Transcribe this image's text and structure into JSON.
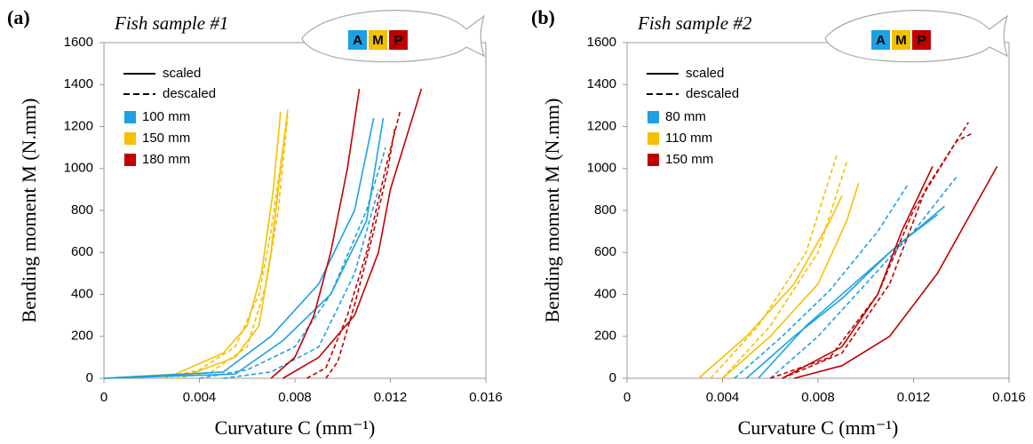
{
  "chart_data": [
    {
      "type": "line",
      "panel_label": "(a)",
      "title": "Fish sample #1",
      "fish_labels": [
        "A",
        "M",
        "P"
      ],
      "xlabel": "Curvature C (mm⁻¹)",
      "ylabel": "Bending moment M (N.mm)",
      "xlim": [
        0,
        0.016
      ],
      "ylim": [
        0,
        1600
      ],
      "xticks": [
        0,
        0.004,
        0.008,
        0.012,
        0.016
      ],
      "yticks": [
        0,
        200,
        400,
        600,
        800,
        1000,
        1200,
        1400,
        1600
      ],
      "legend_styles": [
        {
          "label": "scaled",
          "dashed": false
        },
        {
          "label": "descaled",
          "dashed": true
        }
      ],
      "legend_sizes": [
        {
          "label": "100 mm",
          "color": "#1ba1e2"
        },
        {
          "label": "150 mm",
          "color": "#f5c000"
        },
        {
          "label": "180 mm",
          "color": "#c00000"
        }
      ],
      "series": [
        {
          "color": "#f5c000",
          "dashed": false,
          "x": [
            0,
            0.003,
            0.005,
            0.006,
            0.0066,
            0.0071,
            0.0074
          ],
          "values": [
            0,
            20,
            120,
            250,
            500,
            900,
            1270
          ]
        },
        {
          "color": "#f5c000",
          "dashed": false,
          "x": [
            0,
            0.0035,
            0.0055,
            0.0065,
            0.007,
            0.0074,
            0.0077
          ],
          "values": [
            0,
            15,
            100,
            250,
            600,
            1000,
            1280
          ]
        },
        {
          "color": "#f5c000",
          "dashed": true,
          "x": [
            0.0025,
            0.004,
            0.0055,
            0.0065,
            0.007,
            0.0075
          ],
          "values": [
            0,
            40,
            150,
            400,
            700,
            1100
          ]
        },
        {
          "color": "#f5c000",
          "dashed": true,
          "x": [
            0.003,
            0.0045,
            0.006,
            0.0068,
            0.0073,
            0.0077
          ],
          "values": [
            0,
            30,
            150,
            450,
            800,
            1250
          ]
        },
        {
          "color": "#1ba1e2",
          "dashed": false,
          "x": [
            0,
            0.005,
            0.007,
            0.009,
            0.0105,
            0.0113
          ],
          "values": [
            0,
            30,
            200,
            450,
            800,
            1240
          ]
        },
        {
          "color": "#1ba1e2",
          "dashed": false,
          "x": [
            0,
            0.0055,
            0.0075,
            0.0095,
            0.011,
            0.0117
          ],
          "values": [
            0,
            20,
            180,
            400,
            750,
            1240
          ]
        },
        {
          "color": "#1ba1e2",
          "dashed": true,
          "x": [
            0.004,
            0.006,
            0.008,
            0.0095,
            0.011,
            0.0118
          ],
          "values": [
            0,
            40,
            150,
            400,
            800,
            1100
          ]
        },
        {
          "color": "#1ba1e2",
          "dashed": true,
          "x": [
            0.005,
            0.007,
            0.009,
            0.0105,
            0.0115
          ],
          "values": [
            0,
            30,
            150,
            500,
            900
          ]
        },
        {
          "color": "#c00000",
          "dashed": false,
          "x": [
            0.007,
            0.008,
            0.0088,
            0.0095,
            0.0102,
            0.0107
          ],
          "values": [
            0,
            100,
            300,
            600,
            1000,
            1380
          ]
        },
        {
          "color": "#c00000",
          "dashed": false,
          "x": [
            0.0075,
            0.009,
            0.0105,
            0.0115,
            0.012,
            0.0133
          ],
          "values": [
            0,
            100,
            300,
            600,
            900,
            1380
          ]
        },
        {
          "color": "#c00000",
          "dashed": true,
          "x": [
            0.0085,
            0.0093,
            0.0102,
            0.011,
            0.0118,
            0.0124
          ],
          "values": [
            0,
            50,
            300,
            600,
            1000,
            1270
          ]
        },
        {
          "color": "#c00000",
          "dashed": true,
          "x": [
            0.0093,
            0.0098,
            0.0105,
            0.0113,
            0.0119,
            0.0122
          ],
          "values": [
            0,
            80,
            350,
            700,
            1000,
            1200
          ]
        }
      ]
    },
    {
      "type": "line",
      "panel_label": "(b)",
      "title": "Fish sample #2",
      "fish_labels": [
        "A",
        "M",
        "P"
      ],
      "xlabel": "Curvature C (mm⁻¹)",
      "ylabel": "Bending moment M (N.mm)",
      "xlim": [
        0,
        0.016
      ],
      "ylim": [
        0,
        1600
      ],
      "xticks": [
        0,
        0.004,
        0.008,
        0.012,
        0.016
      ],
      "yticks": [
        0,
        200,
        400,
        600,
        800,
        1000,
        1200,
        1400,
        1600
      ],
      "legend_styles": [
        {
          "label": "scaled",
          "dashed": false
        },
        {
          "label": "descaled",
          "dashed": true
        }
      ],
      "legend_sizes": [
        {
          "label": "80 mm",
          "color": "#1ba1e2"
        },
        {
          "label": "110 mm",
          "color": "#f5c000"
        },
        {
          "label": "150 mm",
          "color": "#c00000"
        }
      ],
      "series": [
        {
          "color": "#f5c000",
          "dashed": false,
          "x": [
            0.003,
            0.005,
            0.007,
            0.0085,
            0.009
          ],
          "values": [
            0,
            200,
            450,
            750,
            870
          ]
        },
        {
          "color": "#f5c000",
          "dashed": false,
          "x": [
            0.004,
            0.006,
            0.008,
            0.0092,
            0.0097
          ],
          "values": [
            0,
            200,
            450,
            750,
            930
          ]
        },
        {
          "color": "#f5c000",
          "dashed": true,
          "x": [
            0.0035,
            0.0055,
            0.0075,
            0.0088
          ],
          "values": [
            0,
            250,
            600,
            1070
          ]
        },
        {
          "color": "#f5c000",
          "dashed": true,
          "x": [
            0.004,
            0.006,
            0.008,
            0.0092
          ],
          "values": [
            0,
            250,
            600,
            1030
          ]
        },
        {
          "color": "#1ba1e2",
          "dashed": false,
          "x": [
            0.005,
            0.007,
            0.009,
            0.011,
            0.0133
          ],
          "values": [
            0,
            200,
            380,
            600,
            820
          ]
        },
        {
          "color": "#1ba1e2",
          "dashed": false,
          "x": [
            0.0055,
            0.0075,
            0.0095,
            0.0115,
            0.013
          ],
          "values": [
            0,
            250,
            450,
            650,
            780
          ]
        },
        {
          "color": "#1ba1e2",
          "dashed": true,
          "x": [
            0.0045,
            0.0065,
            0.0085,
            0.0105,
            0.0118
          ],
          "values": [
            0,
            200,
            420,
            700,
            930
          ]
        },
        {
          "color": "#1ba1e2",
          "dashed": true,
          "x": [
            0.006,
            0.008,
            0.01,
            0.012,
            0.0138
          ],
          "values": [
            0,
            200,
            450,
            700,
            960
          ]
        },
        {
          "color": "#c00000",
          "dashed": false,
          "x": [
            0.007,
            0.009,
            0.011,
            0.013,
            0.0155
          ],
          "values": [
            0,
            60,
            200,
            500,
            1010
          ]
        },
        {
          "color": "#c00000",
          "dashed": false,
          "x": [
            0.0065,
            0.009,
            0.0105,
            0.0115,
            0.0128
          ],
          "values": [
            0,
            150,
            400,
            700,
            1010
          ]
        },
        {
          "color": "#c00000",
          "dashed": true,
          "x": [
            0.006,
            0.0085,
            0.0105,
            0.012,
            0.0138,
            0.0145
          ],
          "values": [
            0,
            100,
            400,
            800,
            1130,
            1170
          ]
        },
        {
          "color": "#c00000",
          "dashed": true,
          "x": [
            0.0065,
            0.009,
            0.011,
            0.0125,
            0.0143
          ],
          "values": [
            0,
            120,
            450,
            900,
            1220
          ]
        }
      ]
    }
  ]
}
